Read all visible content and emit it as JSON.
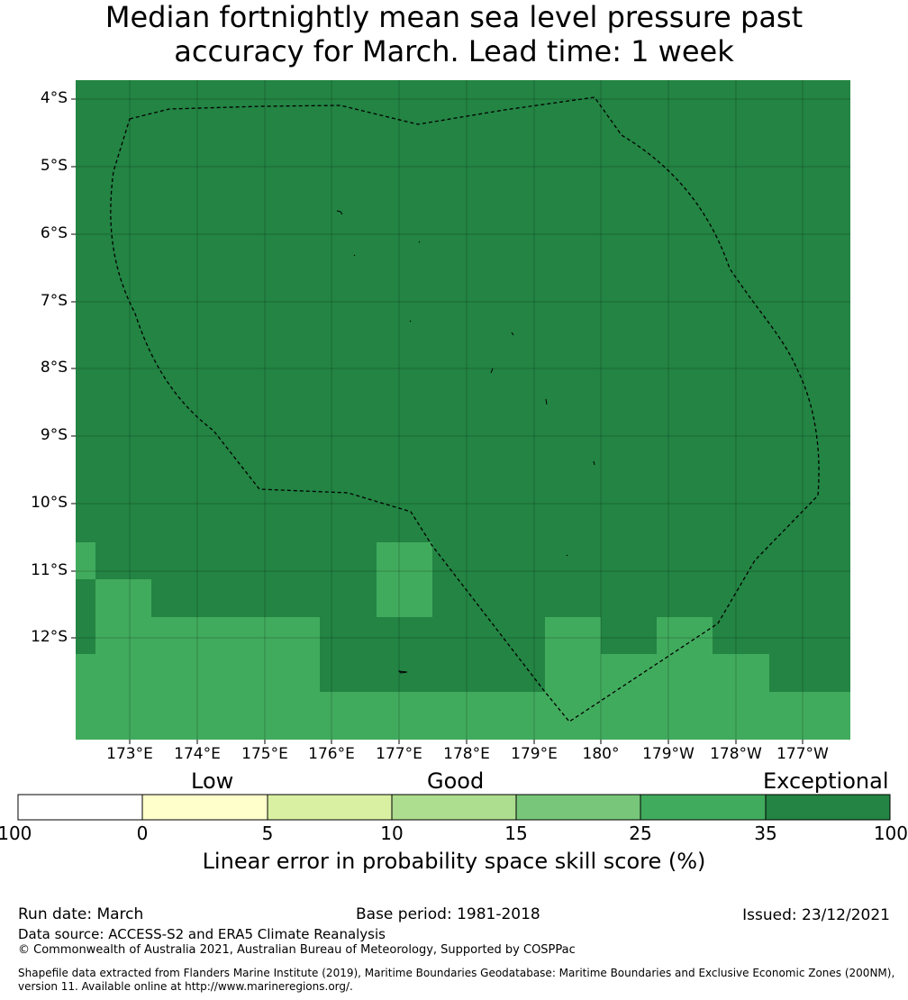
{
  "title": {
    "line1": "Median fortnightly mean sea level pressure past",
    "line2": "accuracy for March. Lead time: 1 week"
  },
  "map": {
    "lat_labels": [
      "4°S",
      "5°S",
      "6°S",
      "7°S",
      "8°S",
      "9°S",
      "10°S",
      "11°S",
      "12°S"
    ],
    "lon_labels": [
      "173°E",
      "174°E",
      "175°E",
      "176°E",
      "177°E",
      "178°E",
      "179°E",
      "180°",
      "179°W",
      "178°W",
      "177°W"
    ],
    "colors": {
      "exceptional": "#238443",
      "very_good": "#41ab5d",
      "border": "#000000"
    }
  },
  "legend": {
    "categories": [
      "Low",
      "Good",
      "Exceptional"
    ],
    "bins": [
      {
        "from": "-100",
        "to": "0",
        "color": "#ffffff"
      },
      {
        "from": "0",
        "to": "5",
        "color": "#ffffcc"
      },
      {
        "from": "5",
        "to": "10",
        "color": "#d9f0a3"
      },
      {
        "from": "10",
        "to": "15",
        "color": "#addd8e"
      },
      {
        "from": "15",
        "to": "25",
        "color": "#78c679"
      },
      {
        "from": "25",
        "to": "35",
        "color": "#41ab5d"
      },
      {
        "from": "35",
        "to": "100",
        "color": "#238443"
      }
    ],
    "ticks": [
      "-100",
      "0",
      "5",
      "10",
      "15",
      "25",
      "35",
      "100"
    ],
    "title": "Linear error in probability space skill score (%)"
  },
  "footer": {
    "run_date": "Run date: March",
    "base_period": "Base period: 1981-2018",
    "issued": "Issued: 23/12/2021",
    "data_source": "Data source: ACCESS-S2 and ERA5 Climate Reanalysis",
    "copyright": "© Commonwealth of Australia 2021, Australian Bureau of Meteorology, Supported by COSPPac",
    "shapefile_line1": "Shapefile data extracted from Flanders Marine Institute (2019), Maritime Boundaries Geodatabase: Maritime Boundaries and Exclusive Economic Zones (200NM),",
    "shapefile_line2": "version 11. Available online at http://www.marineregions.org/."
  }
}
